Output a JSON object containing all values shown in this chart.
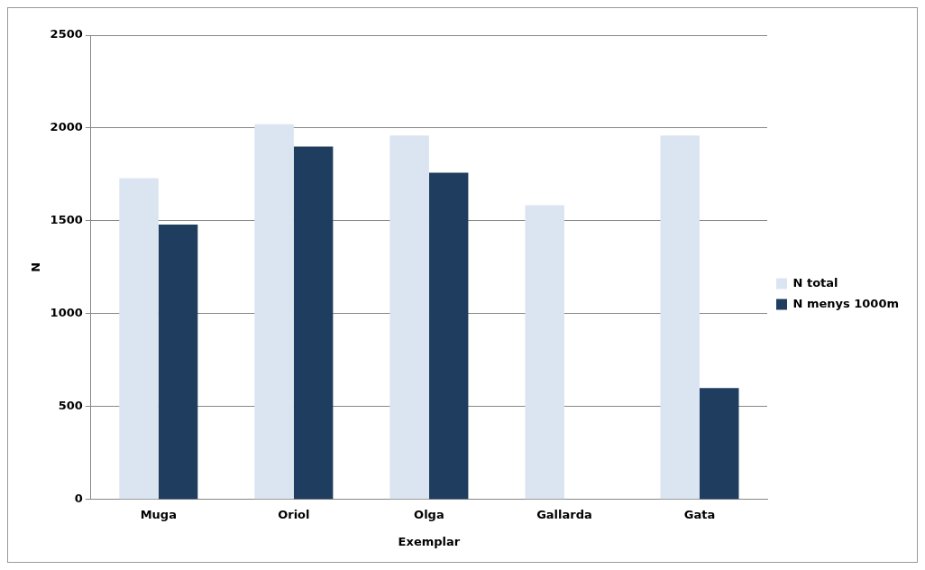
{
  "chart_data": {
    "type": "bar",
    "xlabel": "Exemplar",
    "ylabel": "N",
    "categories": [
      "Muga",
      "Oriol",
      "Olga",
      "Gallarda",
      "Gata"
    ],
    "series": [
      {
        "name": "N total",
        "color": "#dbe5f1",
        "values": [
          1730,
          2020,
          1960,
          1585,
          1960
        ]
      },
      {
        "name": "N menys 1000m",
        "color": "#1f3d5e",
        "values": [
          1480,
          1900,
          1760,
          null,
          600
        ]
      }
    ],
    "ylim": [
      0,
      2500
    ],
    "yticks": [
      0,
      500,
      1000,
      1500,
      2000,
      2500
    ],
    "grid": "y",
    "legend": "right"
  }
}
